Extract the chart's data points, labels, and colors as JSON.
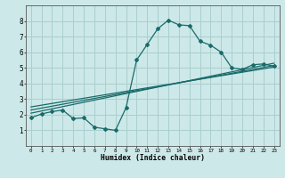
{
  "xlabel": "Humidex (Indice chaleur)",
  "bg_color": "#cde8e8",
  "grid_color": "#aacece",
  "line_color": "#1a6b6b",
  "xlim": [
    -0.5,
    23.5
  ],
  "ylim": [
    0,
    9
  ],
  "xticks": [
    0,
    1,
    2,
    3,
    4,
    5,
    6,
    7,
    8,
    9,
    10,
    11,
    12,
    13,
    14,
    15,
    16,
    17,
    18,
    19,
    20,
    21,
    22,
    23
  ],
  "yticks": [
    1,
    2,
    3,
    4,
    5,
    6,
    7,
    8
  ],
  "series1_x": [
    0,
    1,
    2,
    3,
    4,
    5,
    6,
    7,
    8,
    9,
    10,
    11,
    12,
    13,
    14,
    15,
    16,
    17,
    18,
    19,
    20,
    21,
    22,
    23
  ],
  "series1_y": [
    1.8,
    2.05,
    2.2,
    2.3,
    1.75,
    1.8,
    1.2,
    1.1,
    1.0,
    2.45,
    5.5,
    6.5,
    7.5,
    8.05,
    7.75,
    7.7,
    6.7,
    6.45,
    6.0,
    5.0,
    4.9,
    5.2,
    5.25,
    5.1
  ],
  "series2_x": [
    0,
    23
  ],
  "series2_y": [
    2.1,
    5.3
  ],
  "series3_x": [
    0,
    23
  ],
  "series3_y": [
    2.3,
    5.15
  ],
  "series4_x": [
    0,
    23
  ],
  "series4_y": [
    2.5,
    5.05
  ]
}
